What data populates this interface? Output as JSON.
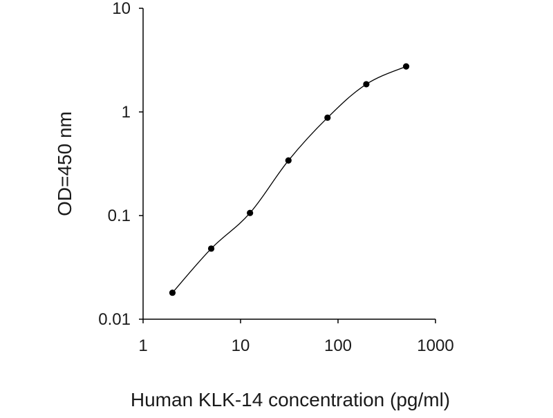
{
  "chart_data": {
    "type": "scatter",
    "title": "",
    "xlabel": "Human KLK-14 concentration (pg/ml)",
    "ylabel": "OD=450 nm",
    "x_scale": "log",
    "y_scale": "log",
    "xlim": [
      1,
      1000
    ],
    "ylim": [
      0.01,
      10
    ],
    "x_ticks": [
      "1",
      "10",
      "100",
      "1000"
    ],
    "y_ticks": [
      "0.01",
      "0.1",
      "1",
      "10"
    ],
    "grid": false,
    "legend": "none",
    "series": [
      {
        "x": [
          2,
          5,
          12.5,
          31,
          78,
          195,
          500
        ],
        "y": [
          0.018,
          0.048,
          0.106,
          0.34,
          0.88,
          1.85,
          2.75
        ],
        "line": true,
        "marker": "circle",
        "color": "#000000"
      }
    ]
  }
}
